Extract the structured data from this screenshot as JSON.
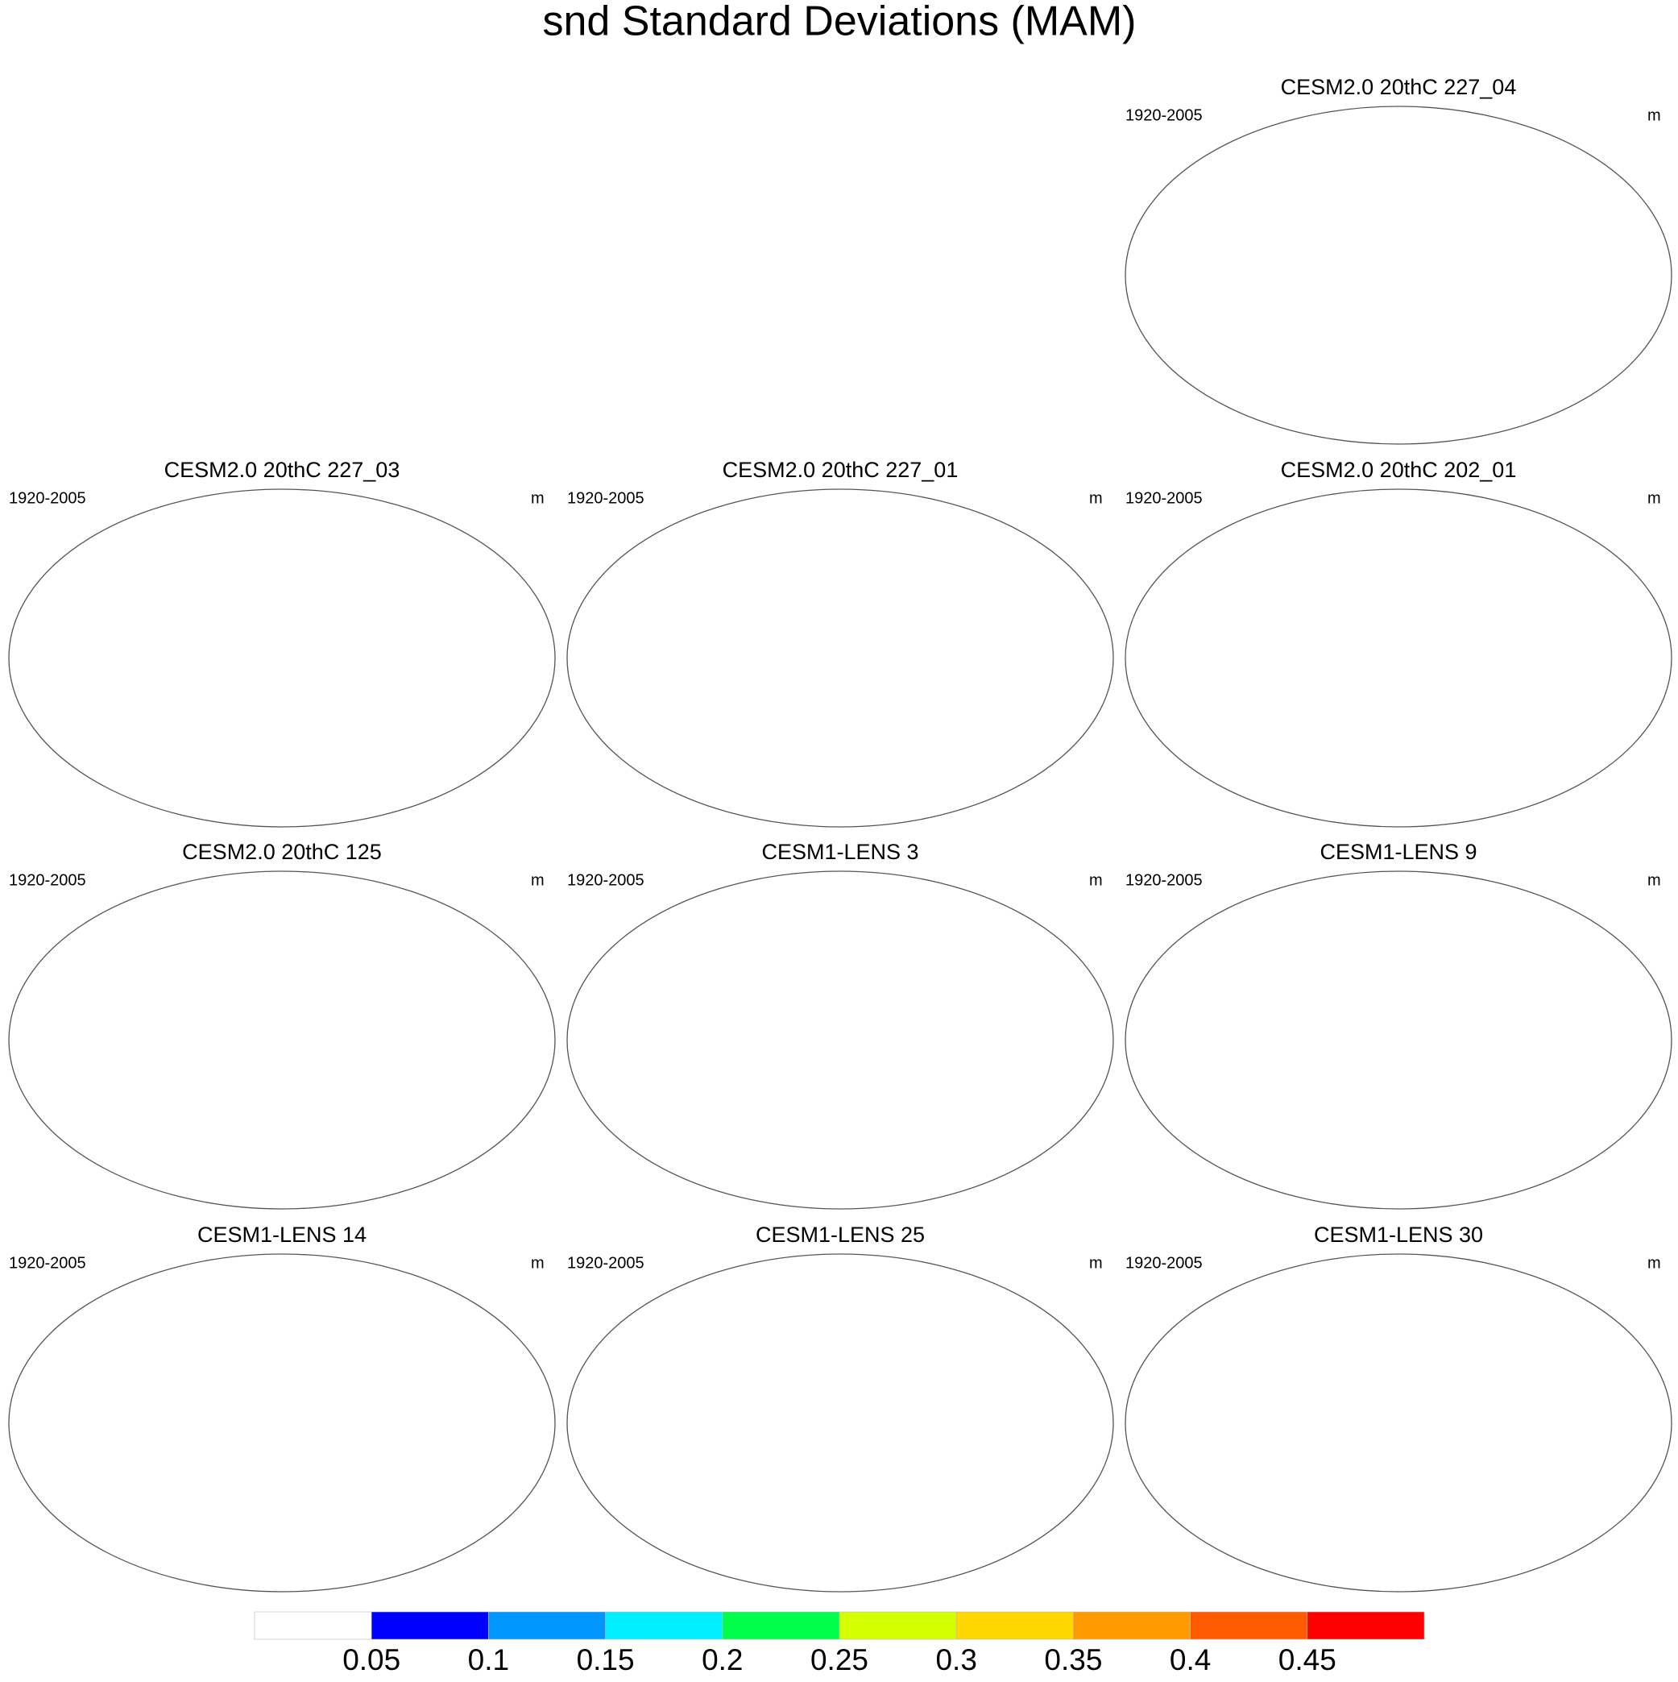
{
  "title": "snd Standard Deviations (MAM)",
  "panels": [
    {
      "title": "CESM2.0 20thC 227_04",
      "period": "1920-2005",
      "units": "m"
    },
    {
      "title": "CESM2.0 20thC 227_03",
      "period": "1920-2005",
      "units": "m"
    },
    {
      "title": "CESM2.0 20thC 227_01",
      "period": "1920-2005",
      "units": "m"
    },
    {
      "title": "CESM2.0 20thC 202_01",
      "period": "1920-2005",
      "units": "m"
    },
    {
      "title": "CESM2.0 20thC 125",
      "period": "1920-2005",
      "units": "m"
    },
    {
      "title": "CESM1-LENS 3",
      "period": "1920-2005",
      "units": "m"
    },
    {
      "title": "CESM1-LENS 9",
      "period": "1920-2005",
      "units": "m"
    },
    {
      "title": "CESM1-LENS 14",
      "period": "1920-2005",
      "units": "m"
    },
    {
      "title": "CESM1-LENS 25",
      "period": "1920-2005",
      "units": "m"
    },
    {
      "title": "CESM1-LENS 30",
      "period": "1920-2005",
      "units": "m"
    }
  ],
  "colorbar": {
    "levels": [
      0.05,
      0.1,
      0.15,
      0.2,
      0.25,
      0.3,
      0.35,
      0.4,
      0.45
    ],
    "colors": [
      "#ffffff",
      "#0000ff",
      "#0096ff",
      "#00f0ff",
      "#00ff4a",
      "#d4ff00",
      "#ffd600",
      "#ff9a00",
      "#ff5a00",
      "#ff0000"
    ]
  }
}
